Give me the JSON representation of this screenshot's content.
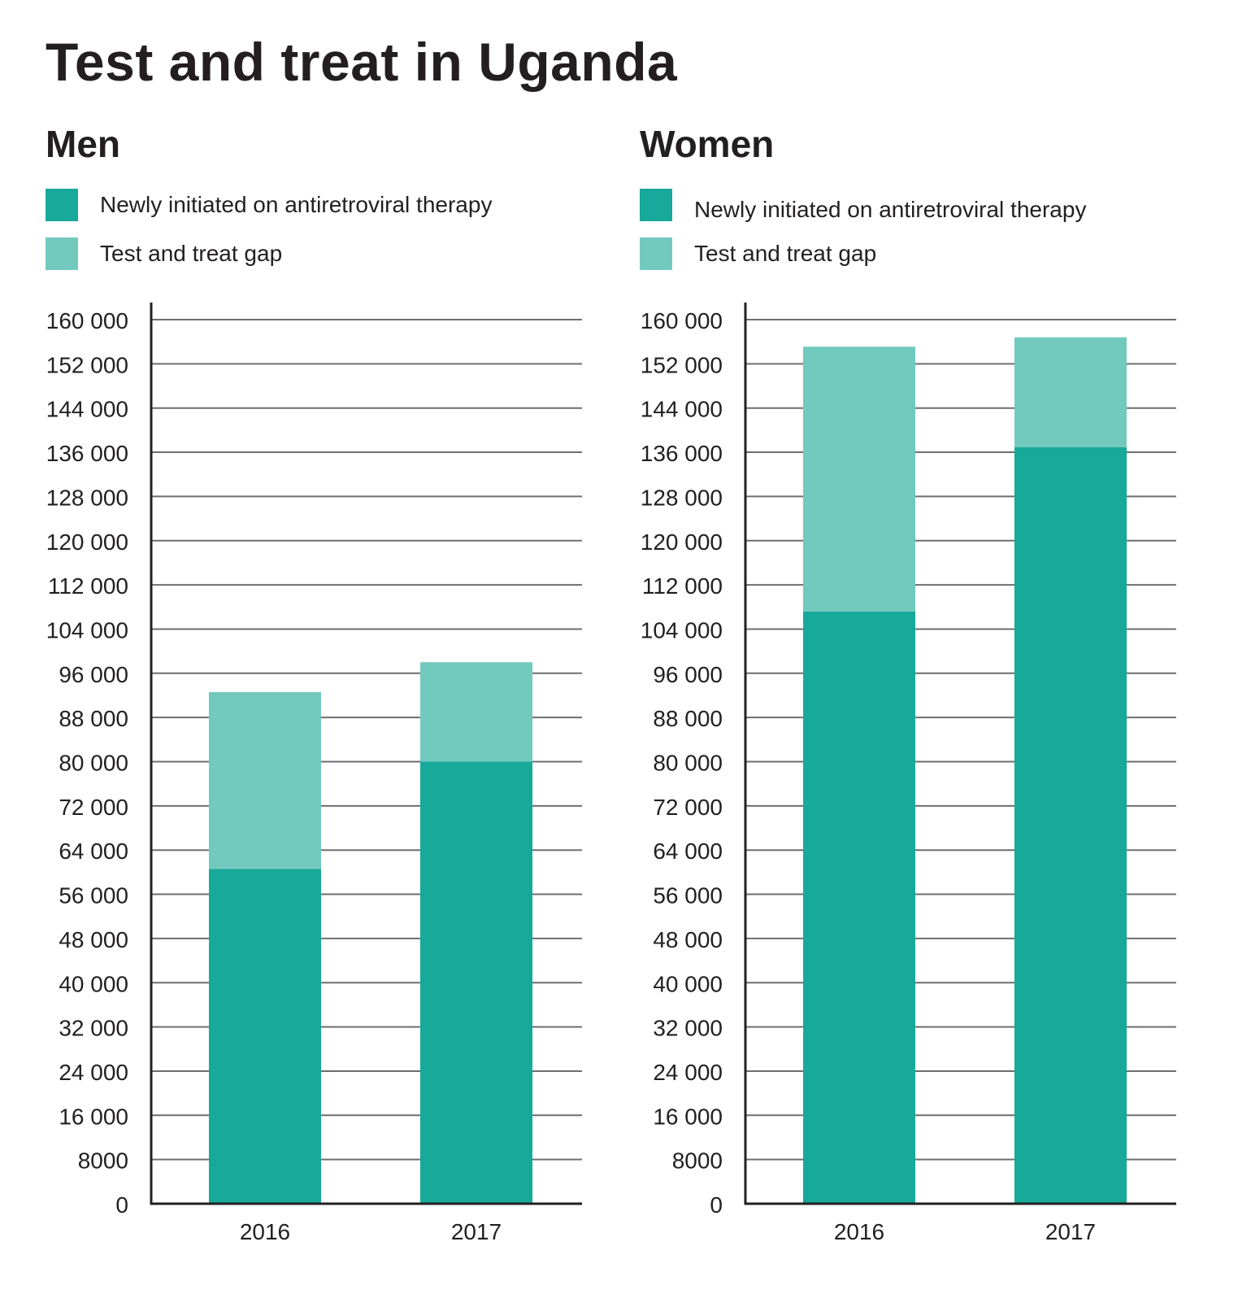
{
  "title": "Test and treat in Uganda",
  "colors": {
    "initiated": "#17a99a",
    "gap": "#72c9be",
    "grid": "#6d6e71",
    "axis": "#231f20"
  },
  "legend": {
    "initiated_label": "Newly initiated on antiretroviral therapy",
    "gap_label": "Test and treat gap"
  },
  "y_ticks": [
    "0",
    "8000",
    "16 000",
    "24 000",
    "32 000",
    "40 000",
    "48 000",
    "56 000",
    "64 000",
    "72 000",
    "80 000",
    "88 000",
    "96 000",
    "104 000",
    "112 000",
    "120 000",
    "128 000",
    "136 000",
    "144 000",
    "152 000",
    "160 000"
  ],
  "chart_data": [
    {
      "type": "bar",
      "stacked": true,
      "title": "Men",
      "categories": [
        "2016",
        "2017"
      ],
      "series": [
        {
          "name": "Newly initiated on antiretroviral therapy",
          "values": [
            60600,
            80000
          ]
        },
        {
          "name": "Test and treat gap",
          "values": [
            32000,
            18000
          ]
        }
      ],
      "ylim": [
        0,
        160000
      ],
      "ytick_step": 8000,
      "grid": true,
      "legend": "top-left"
    },
    {
      "type": "bar",
      "stacked": true,
      "title": "Women",
      "categories": [
        "2016",
        "2017"
      ],
      "series": [
        {
          "name": "Newly initiated on antiretroviral therapy",
          "values": [
            107200,
            136900
          ]
        },
        {
          "name": "Test and treat gap",
          "values": [
            47900,
            19900
          ]
        }
      ],
      "ylim": [
        0,
        160000
      ],
      "ytick_step": 8000,
      "grid": true,
      "legend": "top-left"
    }
  ]
}
